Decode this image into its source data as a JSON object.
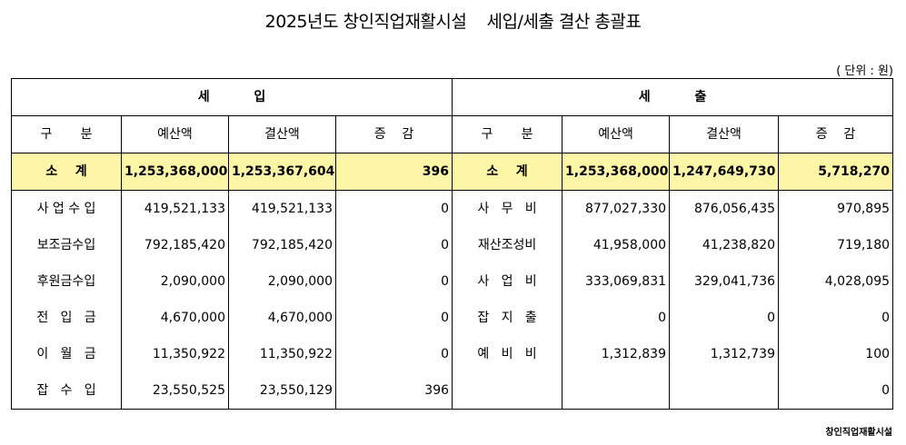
{
  "title": "2025년도 창인직업재활시설    세입/세출 결산 총괄표",
  "unit": "( 단위 : 원)",
  "revenue": {
    "header": "세          입",
    "columns": [
      "구       분",
      "예산액",
      "결산액",
      "증    감"
    ],
    "subtotal": {
      "label": "소    계",
      "budget": "1,253,368,000",
      "settled": "1,253,367,604",
      "diff": "396"
    },
    "rows": [
      {
        "label": "사 업 수 입",
        "budget": "419,521,133",
        "settled": "419,521,133",
        "diff": "0"
      },
      {
        "label": "보조금수입",
        "budget": "792,185,420",
        "settled": "792,185,420",
        "diff": "0"
      },
      {
        "label": "후원금수입",
        "budget": "2,090,000",
        "settled": "2,090,000",
        "diff": "0"
      },
      {
        "label": "전   입   금",
        "budget": "4,670,000",
        "settled": "4,670,000",
        "diff": "0"
      },
      {
        "label": "이   월   금",
        "budget": "11,350,922",
        "settled": "11,350,922",
        "diff": "0"
      },
      {
        "label": "잡   수   입",
        "budget": "23,550,525",
        "settled": "23,550,129",
        "diff": "396"
      }
    ]
  },
  "expense": {
    "header": "세          출",
    "columns": [
      "구       분",
      "예산액",
      "결산액",
      "증    감"
    ],
    "subtotal": {
      "label": "소    계",
      "budget": "1,253,368,000",
      "settled": "1,247,649,730",
      "diff": "5,718,270"
    },
    "rows": [
      {
        "label": "사   무   비",
        "budget": "877,027,330",
        "settled": "876,056,435",
        "diff": "970,895"
      },
      {
        "label": "재산조성비",
        "budget": "41,958,000",
        "settled": "41,238,820",
        "diff": "719,180"
      },
      {
        "label": "사   업   비",
        "budget": "333,069,831",
        "settled": "329,041,736",
        "diff": "4,028,095"
      },
      {
        "label": "잡   지   출",
        "budget": "0",
        "settled": "0",
        "diff": "0"
      },
      {
        "label": "예   비   비",
        "budget": "1,312,839",
        "settled": "1,312,739",
        "diff": "100"
      },
      {
        "label": "",
        "budget": "",
        "settled": "",
        "diff": "0"
      }
    ]
  },
  "footer": "창인직업재활시설"
}
